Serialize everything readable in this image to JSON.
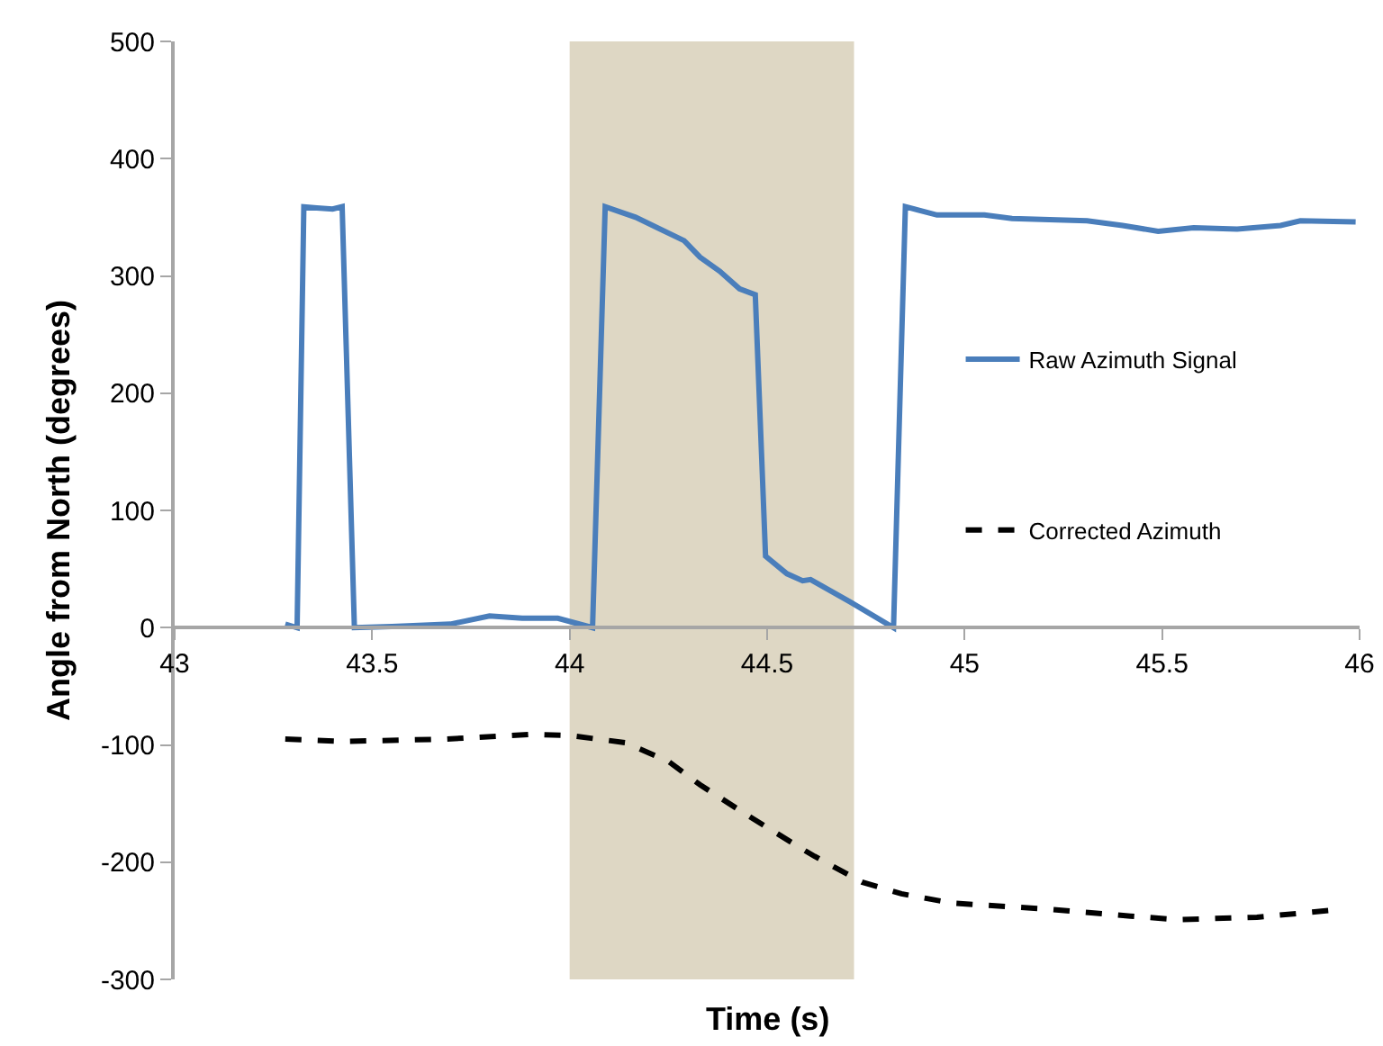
{
  "chart_data": {
    "type": "line",
    "xlabel": "Time (s)",
    "ylabel": "Angle from North (degrees)",
    "xlim": [
      43,
      46
    ],
    "xticks": [
      43,
      43.5,
      44,
      44.5,
      45,
      45.5,
      46
    ],
    "ylim": [
      -300,
      500
    ],
    "yticks": [
      -300,
      -200,
      -100,
      0,
      100,
      200,
      300,
      400,
      500
    ],
    "grid": false,
    "legend": "right",
    "bands": [
      {
        "axis": "x",
        "from": 44.0,
        "to": 44.72,
        "color": "#ded7c4"
      }
    ],
    "series": [
      {
        "name": "Raw Azimuth Signal",
        "color": "#4a7ebb",
        "line_style": "solid",
        "x": [
          43.28,
          43.31,
          43.327,
          43.36,
          43.4,
          43.424,
          43.455,
          43.55,
          43.698,
          43.797,
          43.88,
          43.97,
          44.058,
          44.09,
          44.167,
          44.29,
          44.33,
          44.38,
          44.43,
          44.47,
          44.496,
          44.55,
          44.59,
          44.61,
          44.71,
          44.82,
          44.85,
          44.93,
          45.05,
          45.12,
          45.31,
          45.4,
          45.49,
          45.58,
          45.69,
          45.8,
          45.85,
          45.99
        ],
        "values": [
          3,
          0,
          359,
          358,
          357,
          359,
          0,
          1,
          3,
          10,
          8,
          8,
          0,
          359,
          350,
          330,
          316,
          304,
          289,
          284,
          61,
          46,
          40,
          41,
          22,
          0,
          359,
          352,
          352,
          349,
          347,
          343,
          338,
          341,
          340,
          343,
          347,
          346
        ]
      },
      {
        "name": "Corrected Azimuth",
        "color": "#000000",
        "line_style": "dashed",
        "x": [
          43.28,
          43.43,
          43.69,
          43.9,
          44.0,
          44.14,
          44.25,
          44.33,
          44.45,
          44.59,
          44.62,
          44.74,
          44.84,
          44.97,
          45.21,
          45.42,
          45.54,
          45.74,
          45.93
        ],
        "values": [
          -95,
          -97,
          -95,
          -91,
          -92,
          -98,
          -114,
          -134,
          -160,
          -189,
          -195,
          -217,
          -227,
          -235,
          -240,
          -246,
          -249,
          -247,
          -241
        ]
      }
    ]
  }
}
